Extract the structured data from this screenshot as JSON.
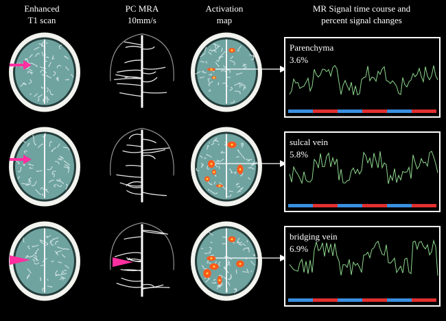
{
  "headers": {
    "col1": [
      "Enhanced",
      "T1 scan"
    ],
    "col2": [
      "PC MRA",
      "10mm/s"
    ],
    "col3": [
      "Activation",
      "map"
    ],
    "col4": [
      "MR Signal time course and",
      "percent signal changes"
    ]
  },
  "rows": [
    {
      "label": "Parenchyma",
      "percent": "3.6%",
      "marker": "arrow",
      "blocks": [
        "blue",
        "red",
        "blue",
        "red",
        "blue",
        "red"
      ]
    },
    {
      "label": "sulcal vein",
      "percent": "5.8%",
      "marker": "arrow",
      "blocks": [
        "blue",
        "red",
        "blue",
        "red",
        "blue",
        "red"
      ]
    },
    {
      "label": "bridging vein",
      "percent": "6.9%",
      "marker": "arrowhead",
      "blocks": [
        "blue",
        "red",
        "blue",
        "red",
        "blue",
        "red"
      ]
    }
  ],
  "colors": {
    "background": "#000000",
    "brain_tissue": "#6fa3a0",
    "skull_ring": "#f2f2ee",
    "marker": "#ff2fa0",
    "activation": "#ff5a1a",
    "signal_trace": "#8fd98f",
    "block_off": "#3a8fe0",
    "block_on": "#e23030"
  }
}
